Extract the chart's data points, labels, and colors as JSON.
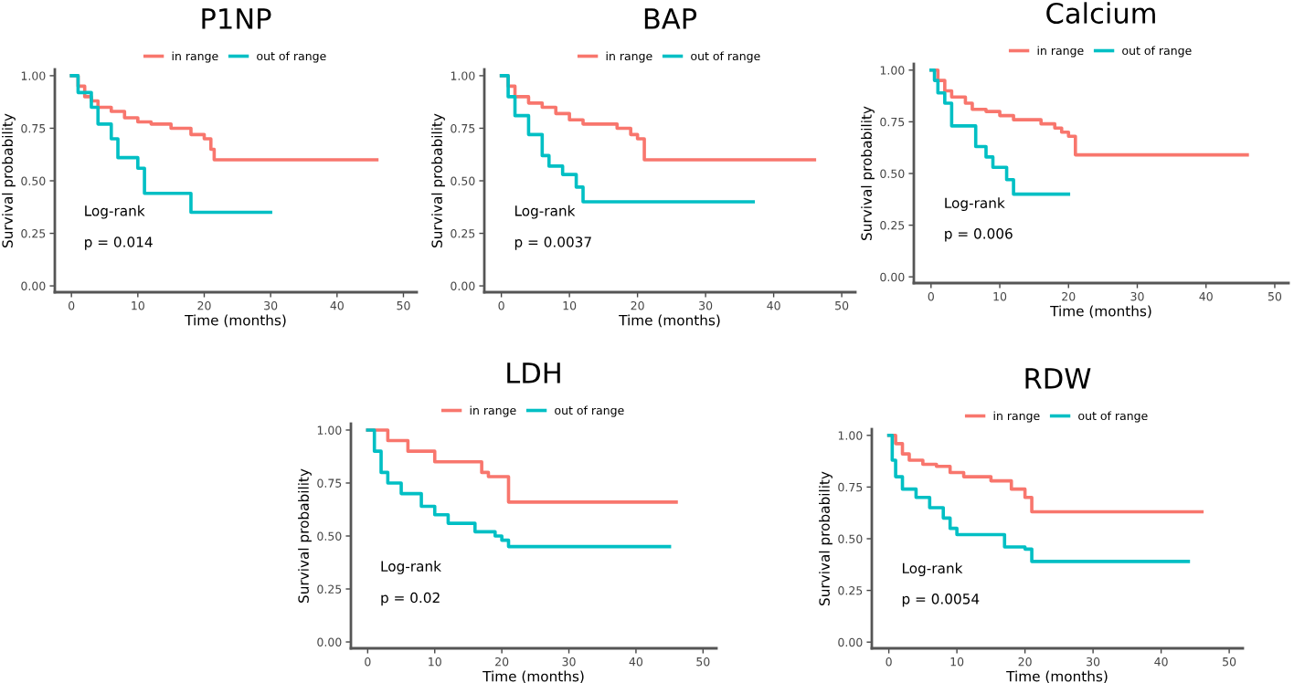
{
  "chart_data": [
    {
      "type": "step",
      "title": "P1NP",
      "xlabel": "Time (months)",
      "ylabel": "Survival probability",
      "legend": "top",
      "grid": false,
      "xlim": [
        -2.5,
        52
      ],
      "xticks": [
        0,
        10,
        20,
        30,
        40,
        50
      ],
      "ylim": [
        -0.03,
        1.03
      ],
      "yticks": [
        {
          "value": 0,
          "label": "0.00"
        },
        {
          "value": 0.25,
          "label": "0.25"
        },
        {
          "value": 0.5,
          "label": "0.50"
        },
        {
          "value": 0.75,
          "label": "0.75"
        },
        {
          "value": 1,
          "label": "1.00"
        }
      ],
      "annotations": [
        "Log-rank",
        "p = 0.014"
      ],
      "series": [
        {
          "name": "in range",
          "color": "#f8766d",
          "x": [
            0,
            1,
            2,
            3,
            4,
            6,
            8,
            10,
            12,
            15,
            18,
            20,
            21,
            21.5,
            46
          ],
          "values": [
            1.0,
            0.95,
            0.9,
            0.88,
            0.85,
            0.83,
            0.8,
            0.78,
            0.77,
            0.75,
            0.72,
            0.7,
            0.65,
            0.6,
            0.6
          ]
        },
        {
          "name": "out of range",
          "color": "#00bfc4",
          "x": [
            0,
            1,
            3,
            4,
            6,
            7,
            10,
            11,
            18,
            30
          ],
          "values": [
            1.0,
            0.92,
            0.85,
            0.77,
            0.7,
            0.61,
            0.56,
            0.44,
            0.35,
            0.35
          ]
        }
      ]
    },
    {
      "type": "step",
      "title": "BAP",
      "xlabel": "Time (months)",
      "ylabel": "Survival probability",
      "legend": "top",
      "grid": false,
      "xlim": [
        -2.5,
        52
      ],
      "xticks": [
        0,
        10,
        20,
        30,
        40,
        50
      ],
      "ylim": [
        -0.03,
        1.03
      ],
      "yticks": [
        {
          "value": 0,
          "label": "0.00"
        },
        {
          "value": 0.25,
          "label": "0.25"
        },
        {
          "value": 0.5,
          "label": "0.50"
        },
        {
          "value": 0.75,
          "label": "0.75"
        },
        {
          "value": 1,
          "label": "1.00"
        }
      ],
      "annotations": [
        "Log-rank",
        "p = 0.0037"
      ],
      "series": [
        {
          "name": "in range",
          "color": "#f8766d",
          "x": [
            0,
            1,
            2,
            4,
            6,
            8,
            10,
            12,
            17,
            19,
            20,
            21,
            46
          ],
          "values": [
            1.0,
            0.95,
            0.9,
            0.87,
            0.85,
            0.82,
            0.79,
            0.77,
            0.75,
            0.72,
            0.7,
            0.6,
            0.6
          ]
        },
        {
          "name": "out of range",
          "color": "#00bfc4",
          "x": [
            0,
            1,
            2,
            4,
            6,
            7,
            9,
            11,
            12,
            37
          ],
          "values": [
            1.0,
            0.9,
            0.81,
            0.72,
            0.62,
            0.57,
            0.53,
            0.47,
            0.4,
            0.4
          ]
        }
      ]
    },
    {
      "type": "step",
      "title": "Calcium",
      "xlabel": "Time (months)",
      "ylabel": "Survival probability",
      "legend": "top",
      "grid": false,
      "xlim": [
        -2.5,
        52
      ],
      "xticks": [
        0,
        10,
        20,
        30,
        40,
        50
      ],
      "ylim": [
        -0.03,
        1.03
      ],
      "yticks": [
        {
          "value": 0,
          "label": "0.00"
        },
        {
          "value": 0.25,
          "label": "0.25"
        },
        {
          "value": 0.5,
          "label": "0.50"
        },
        {
          "value": 0.75,
          "label": "0.75"
        },
        {
          "value": 1,
          "label": "1.00"
        }
      ],
      "annotations": [
        "Log-rank",
        "p = 0.006"
      ],
      "series": [
        {
          "name": "in range",
          "color": "#f8766d",
          "x": [
            0,
            1,
            2,
            3,
            5,
            6,
            8,
            10,
            12,
            16,
            18,
            19,
            20,
            21,
            46
          ],
          "values": [
            1.0,
            0.95,
            0.9,
            0.87,
            0.84,
            0.81,
            0.8,
            0.78,
            0.76,
            0.74,
            0.72,
            0.7,
            0.68,
            0.59,
            0.59
          ]
        },
        {
          "name": "out of range",
          "color": "#00bfc4",
          "x": [
            0,
            0.5,
            1,
            2,
            3,
            6.5,
            8,
            9,
            11,
            12,
            20
          ],
          "values": [
            1.0,
            0.95,
            0.89,
            0.84,
            0.73,
            0.63,
            0.58,
            0.53,
            0.47,
            0.4,
            0.4
          ]
        }
      ]
    },
    {
      "type": "step",
      "title": "LDH",
      "xlabel": "Time (months)",
      "ylabel": "Survival probability",
      "legend": "top",
      "grid": false,
      "xlim": [
        -2.5,
        52
      ],
      "xticks": [
        0,
        10,
        20,
        30,
        40,
        50
      ],
      "ylim": [
        -0.03,
        1.03
      ],
      "yticks": [
        {
          "value": 0,
          "label": "0.00"
        },
        {
          "value": 0.25,
          "label": "0.25"
        },
        {
          "value": 0.5,
          "label": "0.50"
        },
        {
          "value": 0.75,
          "label": "0.75"
        },
        {
          "value": 1,
          "label": "1.00"
        }
      ],
      "annotations": [
        "Log-rank",
        "p = 0.02"
      ],
      "series": [
        {
          "name": "in range",
          "color": "#f8766d",
          "x": [
            0,
            3,
            6,
            10,
            17,
            18,
            21,
            46
          ],
          "values": [
            1.0,
            0.95,
            0.9,
            0.85,
            0.8,
            0.78,
            0.66,
            0.66
          ]
        },
        {
          "name": "out of range",
          "color": "#00bfc4",
          "x": [
            0,
            1,
            2,
            3,
            5,
            8,
            10,
            12,
            16,
            19,
            20,
            21,
            45
          ],
          "values": [
            1.0,
            0.9,
            0.8,
            0.75,
            0.7,
            0.64,
            0.6,
            0.56,
            0.52,
            0.5,
            0.48,
            0.45,
            0.45
          ]
        }
      ]
    },
    {
      "type": "step",
      "title": "RDW",
      "xlabel": "Time (months)",
      "ylabel": "Survival probability",
      "legend": "top",
      "grid": false,
      "xlim": [
        -2.5,
        52
      ],
      "xticks": [
        0,
        10,
        20,
        30,
        40,
        50
      ],
      "ylim": [
        -0.03,
        1.03
      ],
      "yticks": [
        {
          "value": 0,
          "label": "0.00"
        },
        {
          "value": 0.25,
          "label": "0.25"
        },
        {
          "value": 0.5,
          "label": "0.50"
        },
        {
          "value": 0.75,
          "label": "0.75"
        },
        {
          "value": 1,
          "label": "1.00"
        }
      ],
      "annotations": [
        "Log-rank",
        "p = 0.0054"
      ],
      "series": [
        {
          "name": "in range",
          "color": "#f8766d",
          "x": [
            0,
            1,
            2,
            3,
            5,
            7,
            9,
            11,
            15,
            18,
            20,
            21,
            46
          ],
          "values": [
            1.0,
            0.96,
            0.91,
            0.88,
            0.86,
            0.85,
            0.82,
            0.8,
            0.78,
            0.74,
            0.7,
            0.63,
            0.63
          ]
        },
        {
          "name": "out of range",
          "color": "#00bfc4",
          "x": [
            0,
            0.5,
            1,
            2,
            4,
            6,
            8,
            9,
            10,
            17,
            20,
            21,
            44
          ],
          "values": [
            1.0,
            0.88,
            0.8,
            0.74,
            0.7,
            0.65,
            0.6,
            0.55,
            0.52,
            0.46,
            0.45,
            0.39,
            0.39
          ]
        }
      ]
    }
  ]
}
